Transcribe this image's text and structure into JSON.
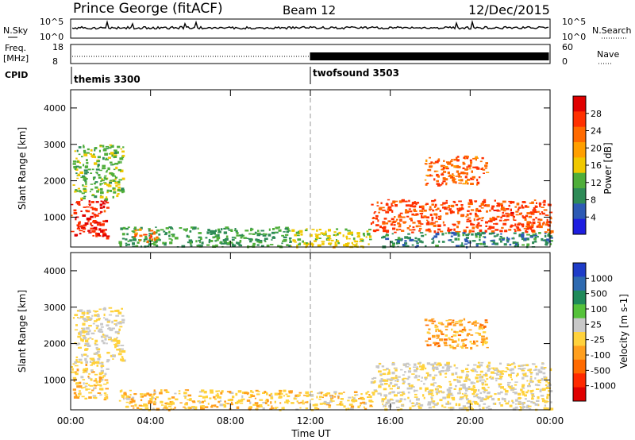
{
  "header": {
    "station": "Prince George (fitACF)",
    "beam": "Beam 12",
    "date": "12/Dec/2015"
  },
  "strip_labels": {
    "nsky": "N.Sky",
    "nsearch": "N.Search",
    "freq": "Freq.",
    "freq_unit": "[MHz]",
    "nave": "Nave",
    "cpid": "CPID",
    "nsky_ticks": [
      "10^5",
      "10^0"
    ],
    "nsearch_ticks": [
      "10^5",
      "10^0"
    ],
    "freq_ticks": [
      "18",
      "8"
    ],
    "nave_ticks": [
      "60",
      "0"
    ]
  },
  "cpid": [
    {
      "name": "themis 3300",
      "start_hour": 0,
      "end_hour": 12
    },
    {
      "name": "twofsound 3503",
      "start_hour": 12,
      "end_hour": 24
    }
  ],
  "x_axis": {
    "label": "Time UT",
    "ticks": [
      "00:00",
      "04:00",
      "08:00",
      "12:00",
      "16:00",
      "20:00",
      "00:00"
    ],
    "range_hours": [
      0,
      24
    ]
  },
  "colors": {
    "power": [
      "#1e1ee0",
      "#2d5ab4",
      "#2e8b57",
      "#4fae3a",
      "#f0c800",
      "#ff9f00",
      "#ff6a00",
      "#ff3000",
      "#e00000"
    ],
    "velocity": [
      "#1e3cc8",
      "#2e6ab0",
      "#1f8a5a",
      "#55c23a",
      "#c8c8c8",
      "#ffd23c",
      "#ff9f1e",
      "#ff6a00",
      "#ff2a00",
      "#e00000"
    ]
  },
  "chart_data": [
    {
      "type": "heatmap",
      "title": "Power",
      "ylabel": "Slant Range [km]",
      "xlabel": "",
      "ylim": [
        180,
        4500
      ],
      "y_ticks": [
        1000,
        2000,
        3000,
        4000
      ],
      "colorbar": {
        "label": "Power [dB]",
        "ticks": [
          "4",
          "8",
          "12",
          "16",
          "20",
          "24",
          "28"
        ],
        "range": [
          0,
          30
        ]
      },
      "echo_regions": [
        {
          "t0": 0.0,
          "t1": 1.8,
          "r0": 450,
          "r1": 1500,
          "value": 26
        },
        {
          "t0": 0.1,
          "t1": 2.6,
          "r0": 1500,
          "r1": 3000,
          "value": 12
        },
        {
          "t0": 2.4,
          "t1": 11.0,
          "r0": 200,
          "r1": 750,
          "value": 10
        },
        {
          "t0": 3.1,
          "t1": 4.3,
          "r0": 350,
          "r1": 700,
          "value": 22
        },
        {
          "t0": 11.0,
          "t1": 15.0,
          "r0": 200,
          "r1": 700,
          "value": 14
        },
        {
          "t0": 15.0,
          "t1": 24.0,
          "r0": 600,
          "r1": 1500,
          "value": 24
        },
        {
          "t0": 17.7,
          "t1": 20.8,
          "r0": 1900,
          "r1": 2700,
          "value": 22
        },
        {
          "t0": 15.5,
          "t1": 24.0,
          "r0": 200,
          "r1": 600,
          "value": 8
        }
      ]
    },
    {
      "type": "heatmap",
      "title": "Velocity",
      "ylabel": "Slant Range [km]",
      "xlabel": "Time UT",
      "ylim": [
        180,
        4500
      ],
      "y_ticks": [
        1000,
        2000,
        3000,
        4000
      ],
      "colorbar": {
        "label": "Velocity [m s-1]",
        "ticks": [
          "1000",
          "500",
          "100",
          "25",
          "-25",
          "-100",
          "-500",
          "-1000"
        ],
        "range": [
          -1000,
          1000
        ]
      },
      "echo_regions": [
        {
          "t0": 0.0,
          "t1": 1.8,
          "r0": 450,
          "r1": 1500,
          "value": -100
        },
        {
          "t0": 0.1,
          "t1": 2.6,
          "r0": 1500,
          "r1": 3000,
          "value": 0
        },
        {
          "t0": 2.4,
          "t1": 11.0,
          "r0": 200,
          "r1": 750,
          "value": -150
        },
        {
          "t0": 11.0,
          "t1": 15.0,
          "r0": 200,
          "r1": 700,
          "value": -100
        },
        {
          "t0": 15.0,
          "t1": 24.0,
          "r0": 600,
          "r1": 1500,
          "value": 0
        },
        {
          "t0": 17.7,
          "t1": 20.8,
          "r0": 1900,
          "r1": 2700,
          "value": -300
        },
        {
          "t0": 15.5,
          "t1": 24.0,
          "r0": 200,
          "r1": 600,
          "value": 0
        }
      ]
    }
  ]
}
